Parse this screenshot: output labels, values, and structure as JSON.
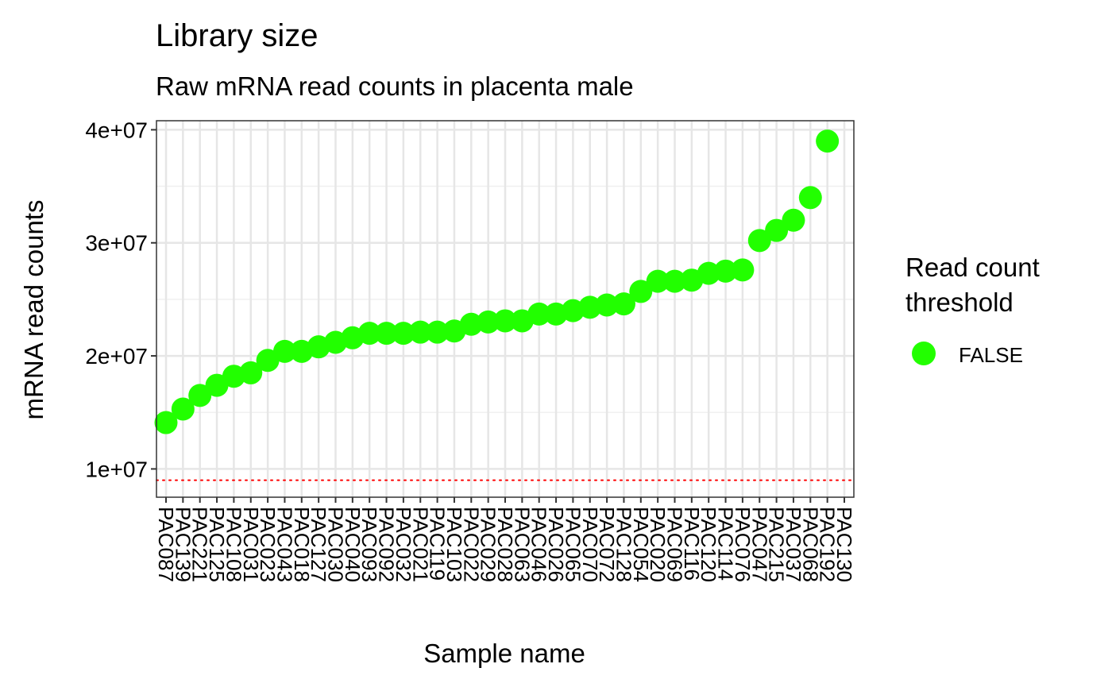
{
  "chart_data": {
    "type": "scatter",
    "title": "Library size",
    "subtitle": "Raw mRNA read counts in placenta male",
    "xlabel": "Sample name",
    "ylabel": "mRNA read counts",
    "categories": [
      "PAC087",
      "PAC139",
      "PAC221",
      "PAC125",
      "PAC108",
      "PAC031",
      "PAC023",
      "PAC043",
      "PAC018",
      "PAC127",
      "PAC030",
      "PAC040",
      "PAC093",
      "PAC092",
      "PAC032",
      "PAC021",
      "PAC119",
      "PAC103",
      "PAC022",
      "PAC029",
      "PAC028",
      "PAC063",
      "PAC046",
      "PAC026",
      "PAC065",
      "PAC070",
      "PAC072",
      "PAC128",
      "PAC054",
      "PAC020",
      "PAC069",
      "PAC116",
      "PAC120",
      "PAC114",
      "PAC076",
      "PAC047",
      "PAC215",
      "PAC037",
      "PAC068",
      "PAC192",
      "PAC130"
    ],
    "tick_labels": [
      "PAC087",
      "PAC139",
      "PAC221",
      "PAC125",
      "PAC108",
      "PAC031",
      "PAC023",
      "PAC043",
      "PAC018",
      "PAC127",
      "PAC030",
      "PAC040",
      "PAC093",
      "PAC092",
      "PAC032",
      "PAC021",
      "PAC119",
      "PAC103",
      "PAC022",
      "PAC029",
      "PAC028",
      "PAC063",
      "PAC046",
      "PAC026",
      "PAC065",
      "PAC070",
      "PAC072",
      "PAC128",
      "PAC054",
      "PAC020",
      "PAC069",
      "PAC116",
      "PAC120",
      "PAC114",
      "PAC076",
      "PAC047",
      "PAC215",
      "PAC037",
      "PAC068",
      "PAC192",
      "PAC130"
    ],
    "series": [
      {
        "name": "FALSE",
        "color": "#22FF00",
        "values": [
          14100000,
          15300000,
          16500000,
          17400000,
          18200000,
          18500000,
          19600000,
          20400000,
          20400000,
          20800000,
          21200000,
          21600000,
          22000000,
          22000000,
          22000000,
          22100000,
          22100000,
          22200000,
          22800000,
          23000000,
          23100000,
          23100000,
          23700000,
          23700000,
          24000000,
          24300000,
          24500000,
          24600000,
          25700000,
          26600000,
          26600000,
          26700000,
          27300000,
          27500000,
          27600000,
          30200000,
          31100000,
          32000000,
          34000000,
          39000000,
          null
        ]
      }
    ],
    "y_ticks": [
      10000000,
      20000000,
      30000000,
      40000000
    ],
    "y_tick_labels": [
      "1e+07",
      "2e+07",
      "3e+07",
      "4e+07"
    ],
    "ylim": [
      7500000,
      40800000
    ],
    "threshold": {
      "value": 9000000,
      "color": "#FF0000",
      "style": "dotted"
    },
    "legend": {
      "title_line1": "Read count",
      "title_line2": "threshold",
      "label": "FALSE",
      "position": "right"
    },
    "grid": true
  }
}
